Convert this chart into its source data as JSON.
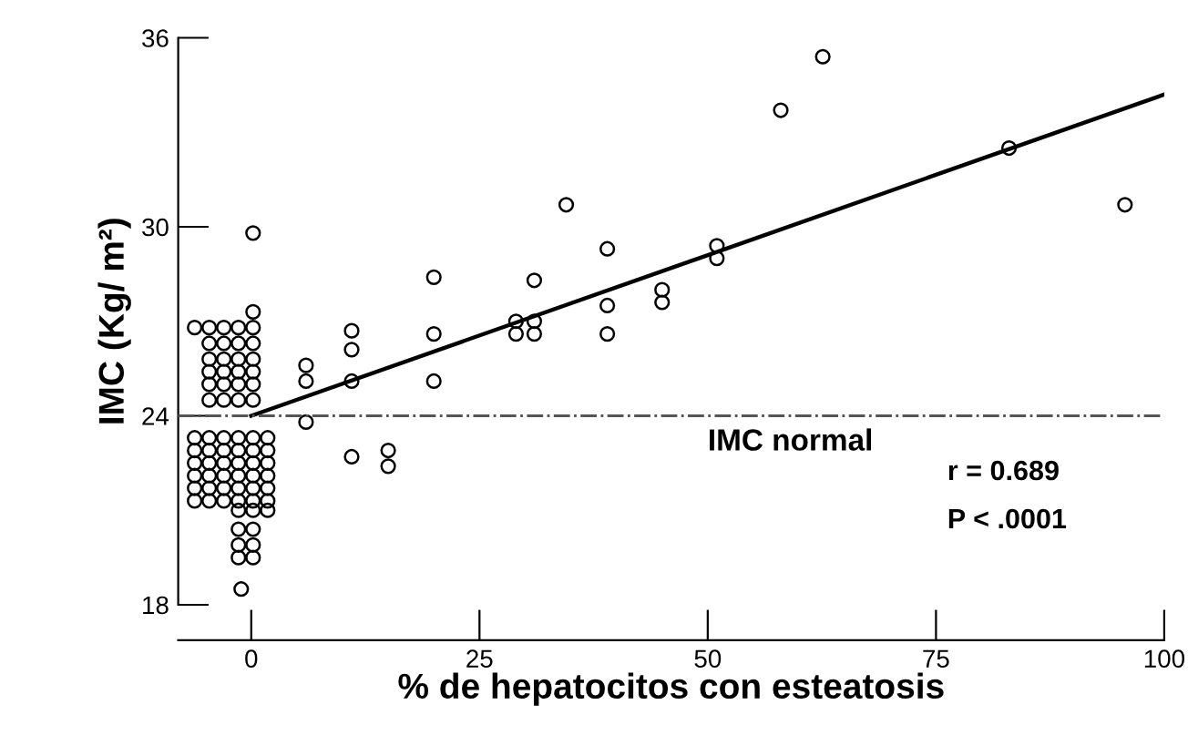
{
  "chart_data": {
    "type": "scatter",
    "xlabel": "% de hepatocitos con esteatosis",
    "ylabel": "IMC (Kg/ m²)",
    "xlim": [
      -8,
      100
    ],
    "ylim": [
      18,
      36
    ],
    "xticks": [
      0,
      25,
      50,
      75,
      100
    ],
    "yticks": [
      18,
      24,
      30,
      36
    ],
    "grid": false,
    "legend": false,
    "series": [
      {
        "color": "#000000",
        "marker": "circle",
        "x": [
          0.2,
          20,
          31,
          34.5,
          39,
          45,
          45,
          39,
          39,
          29,
          31,
          29,
          31,
          20,
          20,
          11,
          11,
          11,
          6,
          6,
          6,
          11,
          15,
          15,
          62.6,
          58,
          51,
          51,
          95.7,
          83,
          -6.2,
          -4.6,
          -3.0,
          -1.4,
          0.2,
          0.2,
          -4.6,
          -3.0,
          -1.4,
          0.2,
          -4.6,
          -3.0,
          -1.4,
          0.2,
          -4.6,
          -3.0,
          -1.4,
          0.2,
          -4.6,
          -3.0,
          -1.4,
          0.2,
          -4.6,
          -3.0,
          -1.4,
          0.2,
          -6.2,
          -4.6,
          -3.0,
          -1.4,
          0.2,
          1.8,
          -6.2,
          -4.6,
          -3.0,
          -1.4,
          0.2,
          1.8,
          -6.2,
          -4.6,
          -3.0,
          -1.4,
          0.2,
          1.8,
          -6.2,
          -4.6,
          -3.0,
          -1.4,
          0.2,
          1.8,
          -6.2,
          -4.6,
          -3.0,
          -1.4,
          0.2,
          1.8,
          -6.2,
          -4.6,
          -3.0,
          -1.4,
          0.2,
          1.8,
          -1.4,
          0.2,
          1.8,
          -1.4,
          0.2,
          -1.4,
          0.2,
          -1.4,
          0.2,
          -1.1
        ],
        "values": [
          29.8,
          28.4,
          28.3,
          30.7,
          29.3,
          28.0,
          27.6,
          27.5,
          26.6,
          27.0,
          27.0,
          26.6,
          26.6,
          26.6,
          25.1,
          26.7,
          26.1,
          25.1,
          25.6,
          25.1,
          23.8,
          22.7,
          22.9,
          22.4,
          35.4,
          33.7,
          29.4,
          29.0,
          30.7,
          32.5,
          26.8,
          26.8,
          26.8,
          26.8,
          26.8,
          27.3,
          26.3,
          26.3,
          26.3,
          26.3,
          25.8,
          25.8,
          25.8,
          25.8,
          25.4,
          25.4,
          25.4,
          25.4,
          25.0,
          25.0,
          25.0,
          25.0,
          24.5,
          24.5,
          24.5,
          24.5,
          23.3,
          23.3,
          23.3,
          23.3,
          23.3,
          23.3,
          22.9,
          22.9,
          22.9,
          22.9,
          22.9,
          22.9,
          22.5,
          22.5,
          22.5,
          22.5,
          22.5,
          22.5,
          22.1,
          22.1,
          22.1,
          22.1,
          22.1,
          22.1,
          21.7,
          21.7,
          21.7,
          21.7,
          21.7,
          21.7,
          21.3,
          21.3,
          21.3,
          21.3,
          21.3,
          21.3,
          21.0,
          21.0,
          21.0,
          20.4,
          20.4,
          19.9,
          19.9,
          19.5,
          19.5,
          18.5
        ]
      },
      {
        "type": "line",
        "color": "#000000",
        "x": [
          0,
          100
        ],
        "values": [
          24.0,
          34.2
        ]
      }
    ],
    "ref_lines": [
      {
        "axis": "y",
        "value": 24,
        "label": "IMC normal",
        "color": "#555555",
        "line_style": "dashdot"
      }
    ],
    "annotations": [
      "r = 0.689",
      "P < .0001"
    ]
  }
}
